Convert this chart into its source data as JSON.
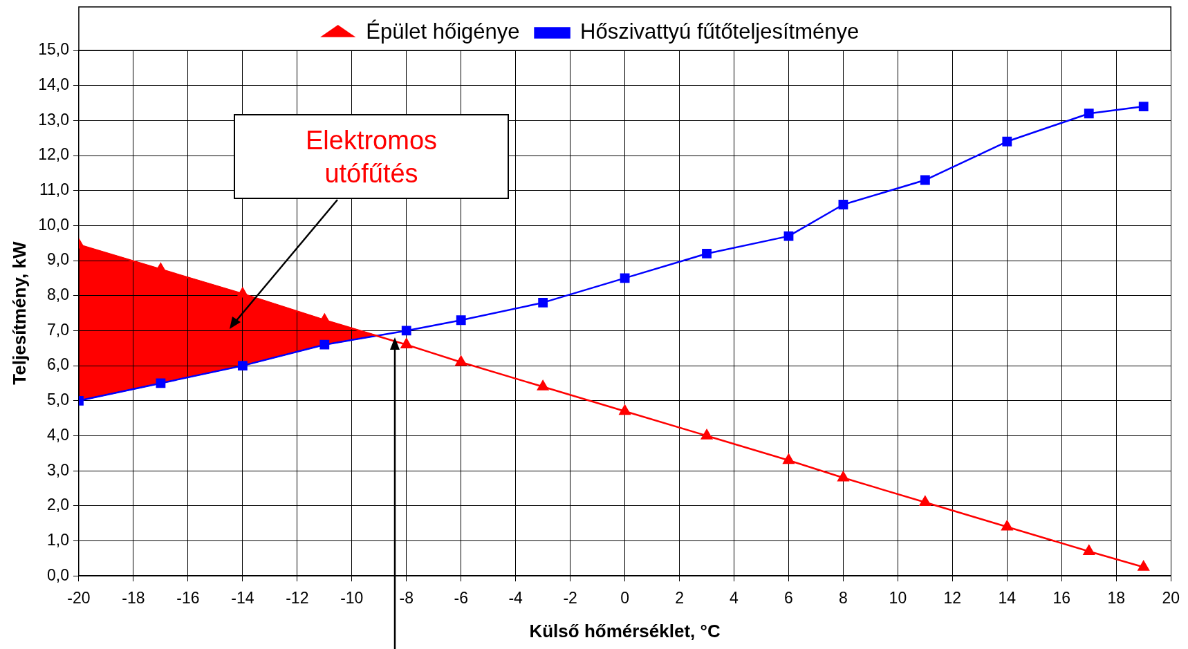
{
  "chart_data": {
    "type": "line",
    "xlabel": "Külső hőmérséklet, °C",
    "ylabel": "Teljesítmény, kW",
    "x": [
      -20,
      -17,
      -14,
      -11,
      -8,
      -6,
      -3,
      0,
      3,
      6,
      8,
      11,
      14,
      17,
      19
    ],
    "series": [
      {
        "name": "Épület hőigénye",
        "color": "#ff0000",
        "marker": "triangle",
        "values": [
          9.45,
          8.75,
          8.05,
          7.3,
          6.6,
          6.1,
          5.4,
          4.7,
          4.0,
          3.3,
          2.8,
          2.1,
          1.4,
          0.7,
          0.25
        ]
      },
      {
        "name": "Hőszivattyú fűtőteljesítménye",
        "color": "#0000ff",
        "marker": "square",
        "values": [
          5.0,
          5.5,
          6.0,
          6.6,
          7.0,
          7.3,
          7.8,
          8.5,
          9.2,
          9.7,
          10.6,
          11.3,
          12.4,
          13.2,
          13.4
        ]
      }
    ],
    "xlim": [
      -20,
      20
    ],
    "xticks": [
      -20,
      -18,
      -16,
      -14,
      -12,
      -10,
      -8,
      -6,
      -4,
      -2,
      0,
      2,
      4,
      6,
      8,
      10,
      12,
      14,
      16,
      18,
      20
    ],
    "ylim": [
      0,
      15
    ],
    "yticks": [
      {
        "value": 0,
        "label": "0,0"
      },
      {
        "value": 1,
        "label": "1,0"
      },
      {
        "value": 2,
        "label": "2,0"
      },
      {
        "value": 3,
        "label": "3,0"
      },
      {
        "value": 4,
        "label": "4,0"
      },
      {
        "value": 5,
        "label": "5,0"
      },
      {
        "value": 6,
        "label": "6,0"
      },
      {
        "value": 7,
        "label": "7,0"
      },
      {
        "value": 8,
        "label": "8,0"
      },
      {
        "value": 9,
        "label": "9,0"
      },
      {
        "value": 10,
        "label": "10,0"
      },
      {
        "value": 11,
        "label": "11,0"
      },
      {
        "value": 12,
        "label": "12,0"
      },
      {
        "value": 13,
        "label": "13,0"
      },
      {
        "value": 14,
        "label": "14,0"
      },
      {
        "value": 15,
        "label": "15,0"
      }
    ],
    "annotations": [
      "Elektromos utófűtés"
    ],
    "grid": true,
    "legend": "top",
    "line_style": "solid"
  }
}
